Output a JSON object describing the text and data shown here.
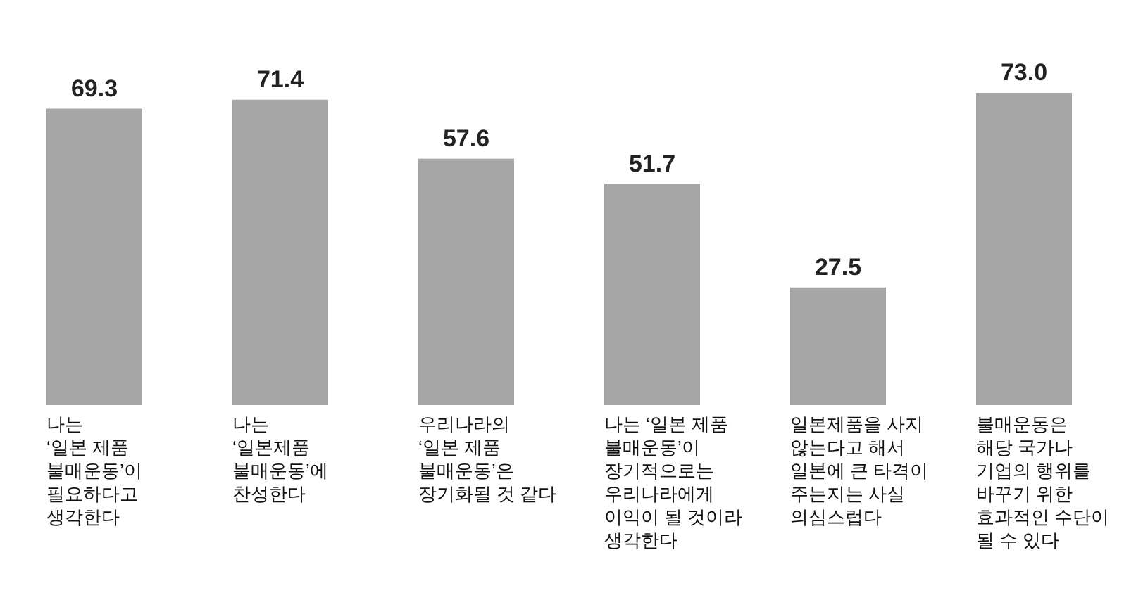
{
  "chart_data": {
    "type": "bar",
    "categories": [
      "나는\n‘일본 제품\n불매운동’이\n필요하다고\n생각한다",
      "나는\n‘일본제품\n불매운동’에\n찬성한다",
      "우리나라의\n‘일본 제품\n불매운동’은\n장기화될 것 같다",
      "나는 ‘일본 제품\n불매운동’이\n장기적으로는\n우리나라에게\n이익이 될 것이라\n생각한다",
      "일본제품을 사지\n않는다고 해서\n일본에 큰 타격이\n주는지는 사실\n의심스럽다",
      "불매운동은\n해당 국가나\n기업의 행위를\n바꾸기 위한\n효과적인 수단이\n될 수 있다"
    ],
    "values": [
      69.3,
      71.4,
      57.6,
      51.7,
      27.5,
      73.0
    ],
    "value_labels": [
      "69.3",
      "71.4",
      "57.6",
      "51.7",
      "27.5",
      "73.0"
    ],
    "color": "#a6a6a6"
  }
}
